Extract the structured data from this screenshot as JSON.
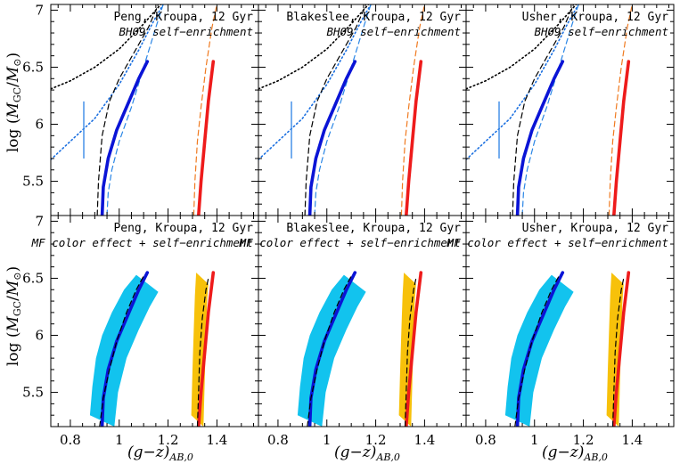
{
  "chart_data": {
    "type": "line",
    "layout": "2 rows x 3 columns, shared axes",
    "x_axis": {
      "label_main": "(g−z)",
      "label_sub": "AB,0",
      "range": [
        0.72,
        1.57
      ],
      "ticks": [
        0.8,
        1,
        1.2,
        1.4
      ],
      "tick_labels": [
        "0.8",
        "1",
        "1.2",
        "1.4"
      ]
    },
    "y_axis": {
      "label_pre": "log (",
      "label_m1": "M",
      "label_sub1": "GC",
      "label_slash": "/",
      "label_m2": "M",
      "label_sub2": "⊙",
      "label_post": ")",
      "range": [
        5.2,
        7.05
      ],
      "ticks": [
        5.5,
        6,
        6.5,
        7
      ],
      "tick_labels": [
        "5.5",
        "6",
        "6.5",
        "7"
      ]
    },
    "colors": {
      "blue_thick": "#0a14d6",
      "red_thick": "#ee1b1b",
      "cyan_band": "#12c3ee",
      "orange_band": "#f7c10a",
      "dotted_black": "#000000",
      "dotted_blue": "#1a6fe0",
      "dashed_blue": "#2a86e6",
      "dashed_orange": "#f07a20",
      "dashed_black": "#000000",
      "errorbar": "#3a8ae6"
    },
    "panels": [
      {
        "row": 0,
        "col": 0,
        "title": "Peng, Kroupa, 12 Gyr",
        "subtitle": "BH09 self−enrichment",
        "blue_offset": 0.0,
        "errorbar_x": 0.855
      },
      {
        "row": 0,
        "col": 1,
        "title": "Blakeslee, Kroupa, 12 Gyr",
        "subtitle": "BH09 self−enrichment",
        "blue_offset": 0.0,
        "errorbar_x": 0.855
      },
      {
        "row": 0,
        "col": 2,
        "title": "Usher, Kroupa, 12 Gyr",
        "subtitle": "BH09 self−enrichment",
        "blue_offset": 0.0,
        "errorbar_x": 0.855
      },
      {
        "row": 1,
        "col": 0,
        "title": "Peng, Kroupa, 12 Gyr",
        "subtitle": "MF color effect + self−enrichment"
      },
      {
        "row": 1,
        "col": 1,
        "title": "Blakeslee, Kroupa, 12 Gyr",
        "subtitle": "MF color effect + self−enrichment"
      },
      {
        "row": 1,
        "col": 2,
        "title": "Usher, Kroupa, 12 Gyr",
        "subtitle": "MF color effect + self−enrichment"
      }
    ],
    "series": {
      "blue_thick": {
        "x": [
          0.93,
          0.935,
          0.955,
          0.99,
          1.04,
          1.08,
          1.115
        ],
        "y": [
          5.2,
          5.45,
          5.7,
          5.95,
          6.2,
          6.4,
          6.55
        ]
      },
      "red_thick": {
        "x": [
          1.325,
          1.335,
          1.35,
          1.365,
          1.385
        ],
        "y": [
          5.2,
          5.5,
          5.85,
          6.2,
          6.55
        ]
      },
      "black_dashed_top": {
        "x": [
          0.91,
          0.915,
          0.93,
          0.96,
          1.0,
          1.04,
          1.08,
          1.12,
          1.16
        ],
        "y": [
          5.2,
          5.5,
          5.9,
          6.2,
          6.4,
          6.55,
          6.7,
          6.85,
          7.05
        ]
      },
      "blue_dashed_top": {
        "x": [
          0.95,
          0.955,
          0.97,
          1.0,
          1.05,
          1.1,
          1.15,
          1.18
        ],
        "y": [
          5.2,
          5.4,
          5.6,
          5.85,
          6.15,
          6.5,
          6.85,
          7.05
        ]
      },
      "blue_dotted_top": {
        "x": [
          0.72,
          0.8,
          0.9,
          1.0,
          1.08,
          1.14,
          1.18
        ],
        "y": [
          5.69,
          5.85,
          6.05,
          6.35,
          6.65,
          6.9,
          7.05
        ]
      },
      "black_dotted_top": {
        "x": [
          0.72,
          0.8,
          0.9,
          1.0,
          1.1,
          1.17
        ],
        "y": [
          6.31,
          6.38,
          6.5,
          6.66,
          6.88,
          7.05
        ]
      },
      "orange_dashed_top": {
        "x": [
          1.305,
          1.31,
          1.32,
          1.335,
          1.355,
          1.38,
          1.4
        ],
        "y": [
          5.2,
          5.5,
          5.85,
          6.15,
          6.5,
          6.85,
          7.05
        ]
      },
      "black_dashed_bottom_blue": {
        "x": [
          0.92,
          0.935,
          0.96,
          0.99,
          1.03,
          1.07,
          1.1
        ],
        "y": [
          5.2,
          5.45,
          5.7,
          5.95,
          6.2,
          6.4,
          6.52
        ]
      },
      "black_dashed_bottom_red": {
        "x": [
          1.32,
          1.325,
          1.33,
          1.34,
          1.355,
          1.365
        ],
        "y": [
          5.2,
          5.5,
          5.85,
          6.15,
          6.4,
          6.5
        ]
      },
      "errorbar": {
        "y": [
          5.7,
          6.2
        ]
      }
    },
    "bands": {
      "cyan": {
        "left_x": [
          0.88,
          0.89,
          0.905,
          0.93,
          0.97,
          1.02,
          1.07
        ],
        "left_y": [
          5.3,
          5.55,
          5.8,
          6.0,
          6.2,
          6.4,
          6.53
        ],
        "right_x": [
          0.98,
          0.995,
          1.03,
          1.08,
          1.125,
          1.16
        ],
        "right_y": [
          5.2,
          5.5,
          5.8,
          6.05,
          6.25,
          6.38
        ]
      },
      "orange": {
        "left_x": [
          1.295,
          1.3,
          1.305,
          1.31,
          1.315
        ],
        "left_y": [
          5.3,
          5.7,
          6.05,
          6.35,
          6.55
        ],
        "right_x": [
          1.345,
          1.35,
          1.355,
          1.36,
          1.365
        ],
        "right_y": [
          5.2,
          5.6,
          6.0,
          6.3,
          6.45
        ]
      }
    }
  }
}
